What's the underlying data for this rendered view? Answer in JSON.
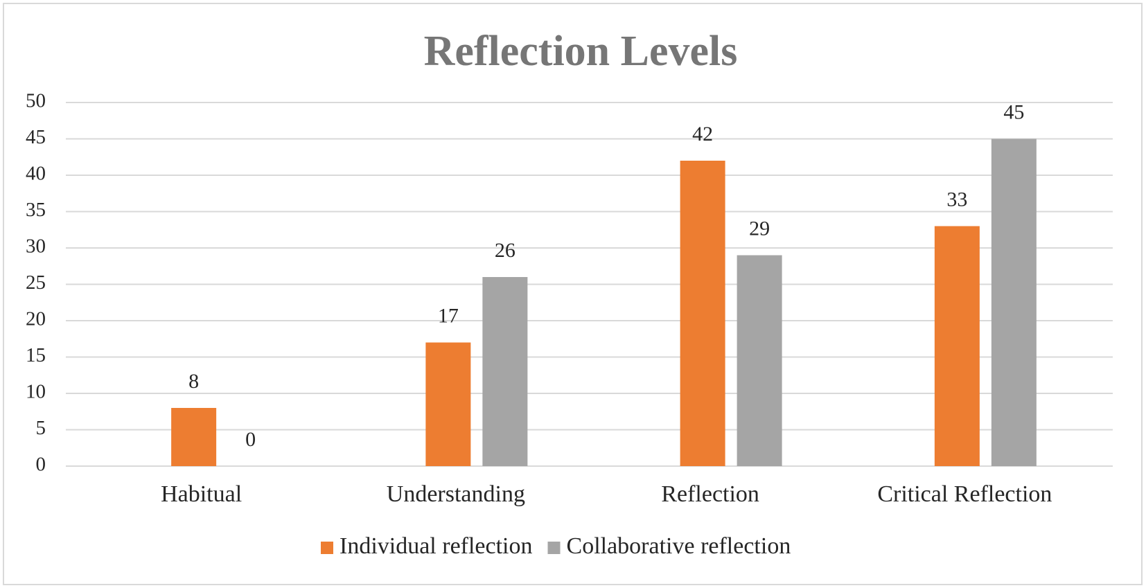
{
  "chart_data": {
    "type": "bar",
    "title": "Reflection Levels",
    "categories": [
      "Habitual",
      "Understanding",
      "Reflection",
      "Critical Reflection"
    ],
    "series": [
      {
        "name": "Individual reflection",
        "color": "#ed7d31",
        "values": [
          8,
          17,
          42,
          33
        ]
      },
      {
        "name": "Collaborative reflection",
        "color": "#a5a5a5",
        "values": [
          0,
          26,
          29,
          45
        ]
      }
    ],
    "ylim": [
      0,
      50
    ],
    "yticks": [
      0,
      5,
      10,
      15,
      20,
      25,
      30,
      35,
      40,
      45,
      50
    ],
    "grid": true,
    "legend": "bottom"
  }
}
